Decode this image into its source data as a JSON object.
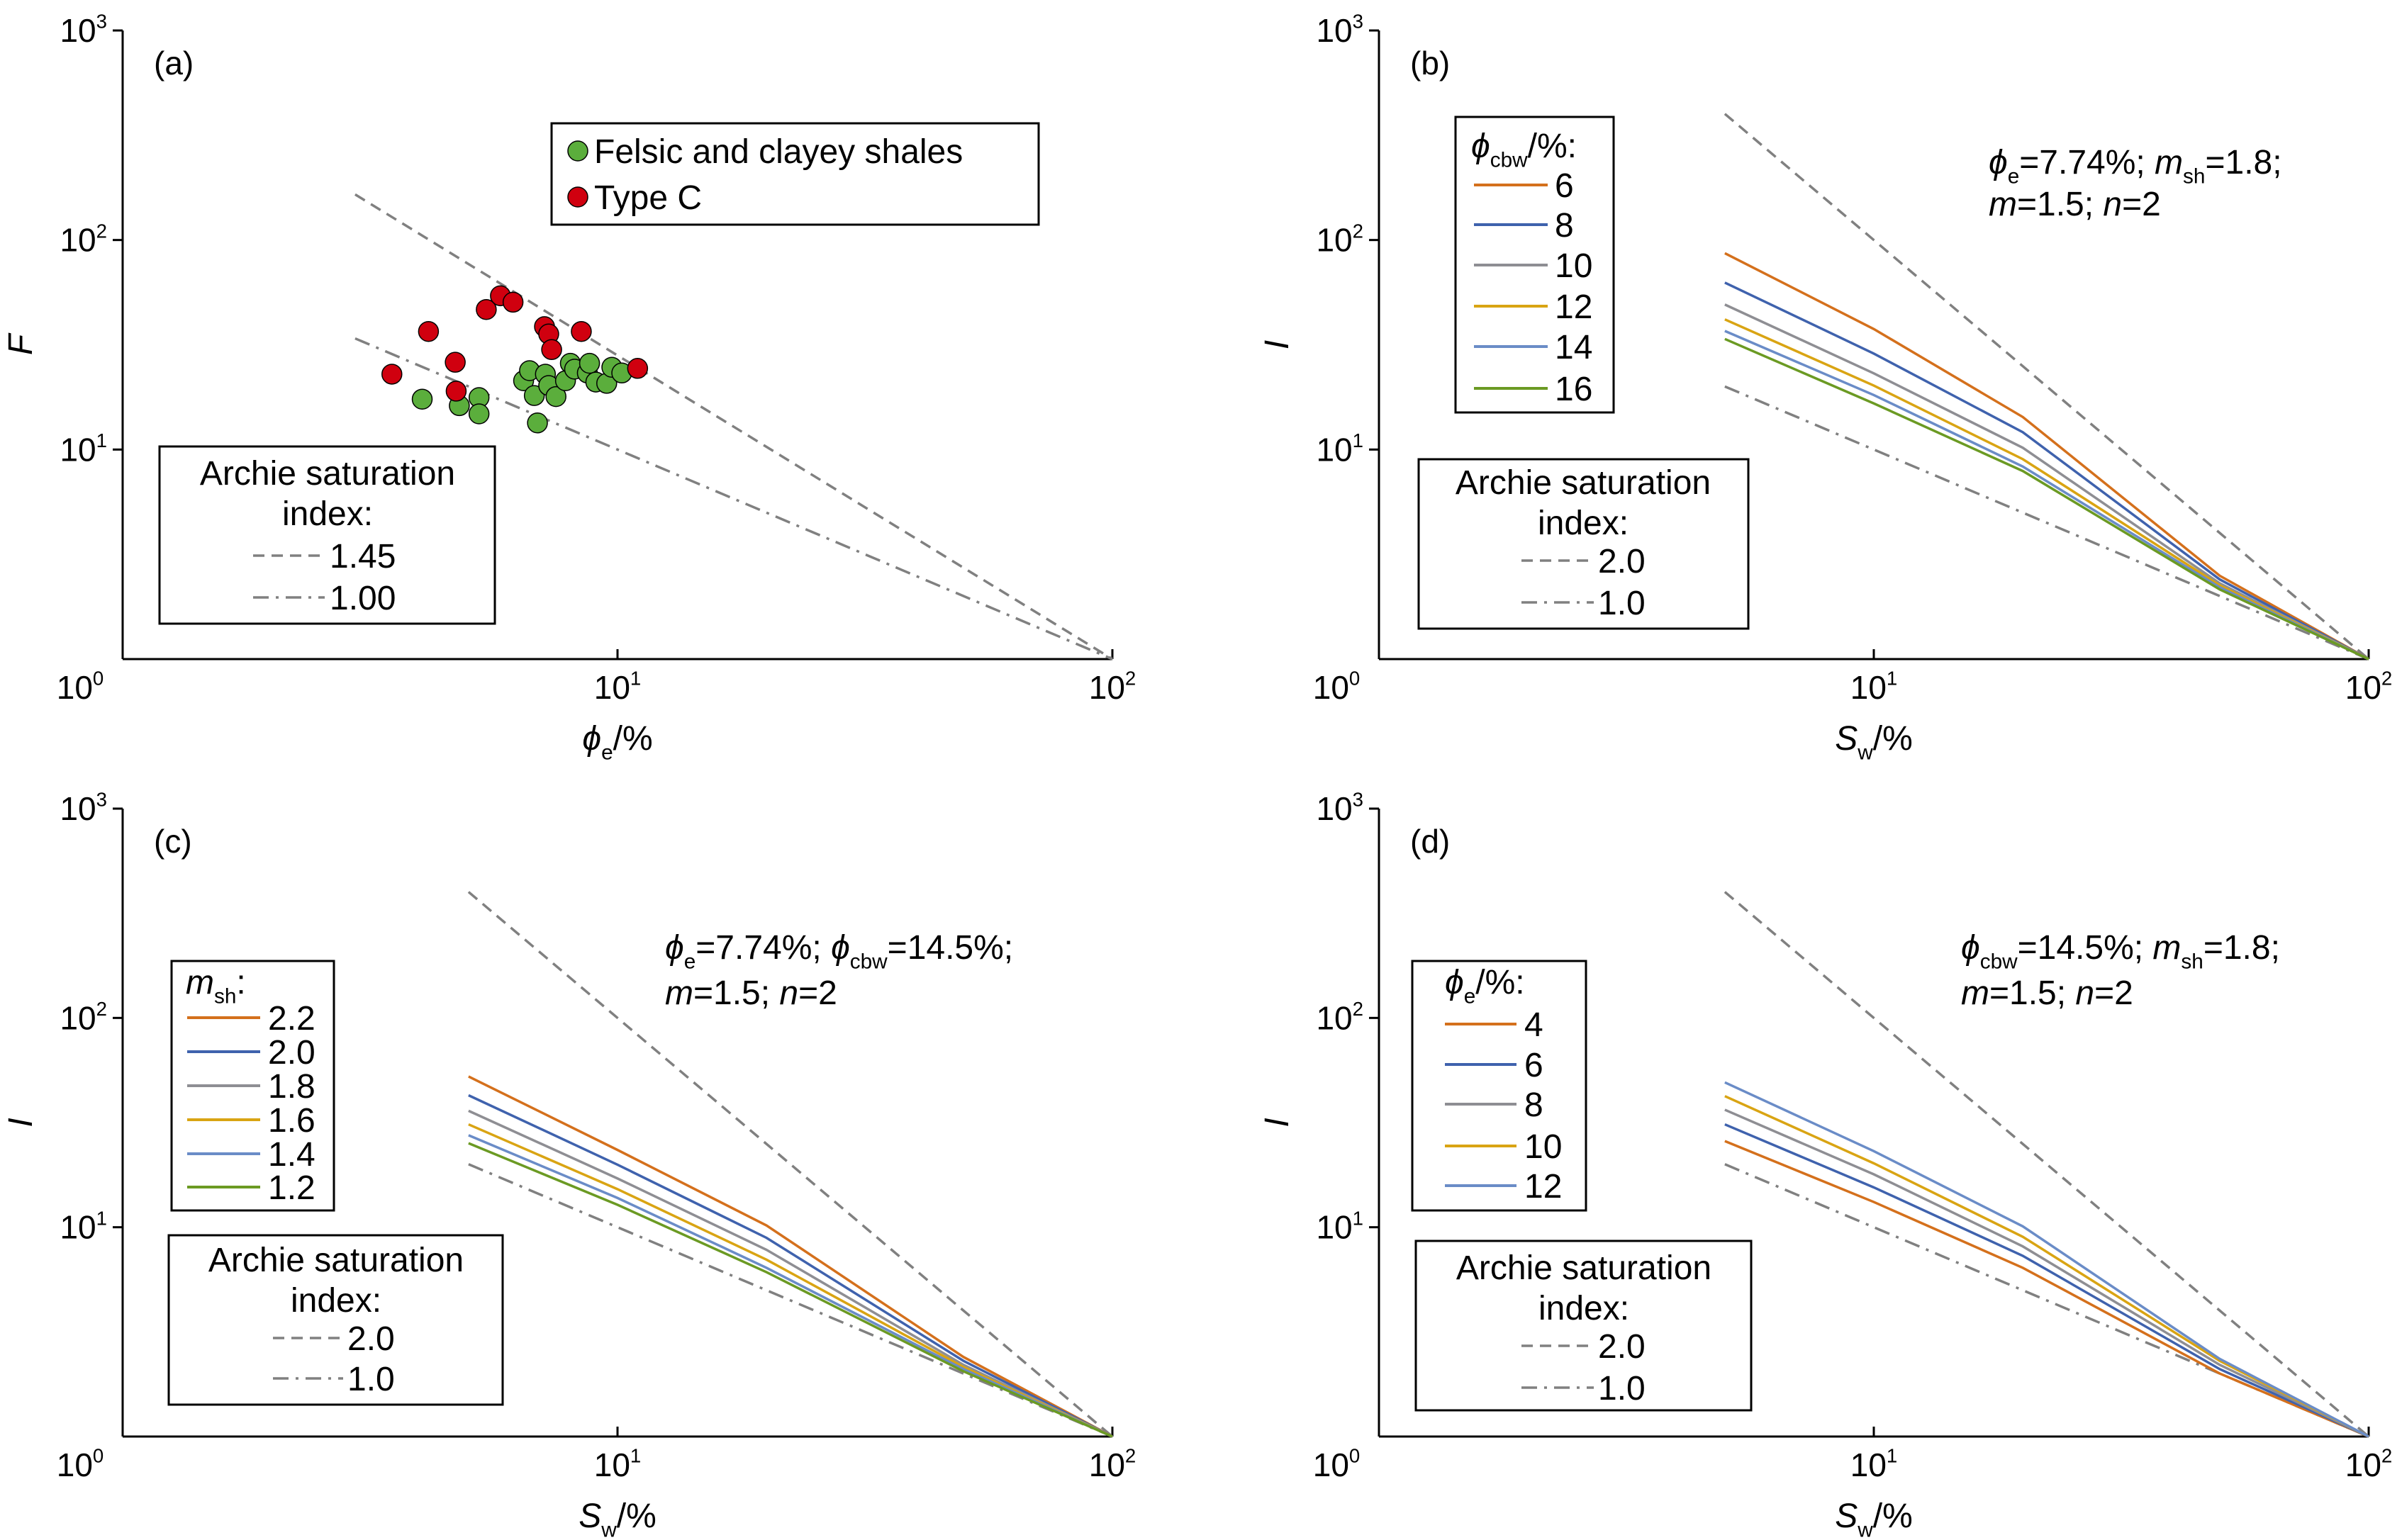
{
  "chart_data": [
    {
      "panel_label": "(a)",
      "type": "scatter",
      "xscale": "log",
      "yscale": "log",
      "xlim": [
        1,
        100
      ],
      "ylim": [
        1,
        1000
      ],
      "x_tick_exponents": [
        0,
        1,
        2
      ],
      "y_tick_exponents": [
        0,
        1,
        2,
        3
      ],
      "xlabel": [
        {
          "t": "ϕ",
          "i": true
        },
        {
          "t": "e",
          "sub": true
        },
        {
          "t": "/%"
        }
      ],
      "ylabel": [
        {
          "t": "F",
          "i": true
        }
      ],
      "series": [
        {
          "name": "Felsic and clayey shales",
          "color": "#5BAE3C",
          "points": [
            [
              4.03,
              17.4
            ],
            [
              4.79,
              16.2
            ],
            [
              5.25,
              17.7
            ],
            [
              5.25,
              14.8
            ],
            [
              6.89,
              13.4
            ],
            [
              6.46,
              21.3
            ],
            [
              6.64,
              23.8
            ],
            [
              6.79,
              18.1
            ],
            [
              7.15,
              22.9
            ],
            [
              7.26,
              20.2
            ],
            [
              7.51,
              17.9
            ],
            [
              7.85,
              21.3
            ],
            [
              8.03,
              25.8
            ],
            [
              8.19,
              24.2
            ],
            [
              8.69,
              23.2
            ],
            [
              8.78,
              25.8
            ],
            [
              9.04,
              21.0
            ],
            [
              9.51,
              20.7
            ],
            [
              9.74,
              24.7
            ],
            [
              10.2,
              23.2
            ]
          ]
        },
        {
          "name": "Type C",
          "color": "#D0000F",
          "points": [
            [
              3.5,
              22.9
            ],
            [
              4.15,
              36.6
            ],
            [
              4.7,
              26.1
            ],
            [
              4.72,
              19.0
            ],
            [
              5.43,
              46.6
            ],
            [
              5.8,
              54.2
            ],
            [
              6.15,
              50.5
            ],
            [
              7.12,
              38.6
            ],
            [
              7.26,
              35.6
            ],
            [
              7.36,
              30.0
            ],
            [
              8.45,
              36.6
            ],
            [
              10.98,
              24.4
            ]
          ]
        }
      ],
      "reference_legend": {
        "title": [
          "Archie saturation",
          "index:"
        ],
        "lines": [
          {
            "label": "1.45",
            "style": "dashed",
            "points": [
              [
                2.95,
                165
              ],
              [
                100,
                1
              ]
            ]
          },
          {
            "label": "1.00",
            "style": "dashdot",
            "points": [
              [
                2.95,
                33.9
              ],
              [
                100,
                1
              ]
            ]
          }
        ]
      }
    },
    {
      "panel_label": "(b)",
      "type": "line",
      "xscale": "log",
      "yscale": "log",
      "xlim": [
        1,
        100
      ],
      "ylim": [
        1,
        1000
      ],
      "x_tick_exponents": [
        0,
        1,
        2
      ],
      "y_tick_exponents": [
        0,
        1,
        2,
        3
      ],
      "xlabel": [
        {
          "t": "S",
          "i": true
        },
        {
          "t": "w",
          "sub": true
        },
        {
          "t": "/%"
        }
      ],
      "ylabel": [
        {
          "t": "I",
          "i": true
        }
      ],
      "annotation": [
        [
          {
            "t": "ϕ",
            "i": true
          },
          {
            "t": "e",
            "sub": true
          },
          {
            "t": "=7.74%; "
          },
          {
            "t": "m",
            "i": true
          },
          {
            "t": "sh",
            "sub": true
          },
          {
            "t": "=1.8;"
          }
        ],
        [
          {
            "t": "m",
            "i": true
          },
          {
            "t": "=1.5; "
          },
          {
            "t": "n",
            "i": true
          },
          {
            "t": "=2"
          }
        ]
      ],
      "legend_title": [
        {
          "t": "ϕ",
          "i": true
        },
        {
          "t": "cbw",
          "sub": true
        },
        {
          "t": "/%:"
        }
      ],
      "x": [
        5,
        10,
        20,
        50,
        100
      ],
      "series": [
        {
          "name": "6",
          "color": "#D4701C",
          "values": [
            86.5,
            37.6,
            14.3,
            2.5,
            1
          ]
        },
        {
          "name": "8",
          "color": "#3F62AD",
          "values": [
            62.6,
            28.7,
            12.1,
            2.4,
            1
          ]
        },
        {
          "name": "10",
          "color": "#8E8E93",
          "values": [
            49.2,
            23.1,
            10.2,
            2.3,
            1
          ]
        },
        {
          "name": "12",
          "color": "#D9A413",
          "values": [
            41.8,
            20.2,
            9.0,
            2.25,
            1
          ]
        },
        {
          "name": "14",
          "color": "#6A8CC7",
          "values": [
            36.8,
            18.2,
            8.3,
            2.2,
            1
          ]
        },
        {
          "name": "16",
          "color": "#6B9A23",
          "values": [
            33.7,
            16.6,
            7.9,
            2.15,
            1
          ]
        }
      ],
      "reference_legend": {
        "title": [
          "Archie saturation",
          "index:"
        ],
        "lines": [
          {
            "label": "2.0",
            "style": "dashed",
            "points": [
              [
                5,
                400
              ],
              [
                100,
                1
              ]
            ]
          },
          {
            "label": "1.0",
            "style": "dashdot",
            "points": [
              [
                5,
                20
              ],
              [
                100,
                1
              ]
            ]
          }
        ]
      }
    },
    {
      "panel_label": "(c)",
      "type": "line",
      "xscale": "log",
      "yscale": "log",
      "xlim": [
        1,
        100
      ],
      "ylim": [
        1,
        1000
      ],
      "x_tick_exponents": [
        0,
        1,
        2
      ],
      "y_tick_exponents": [
        0,
        1,
        2,
        3
      ],
      "xlabel": [
        {
          "t": "S",
          "i": true
        },
        {
          "t": "w",
          "sub": true
        },
        {
          "t": "/%"
        }
      ],
      "ylabel": [
        {
          "t": "I",
          "i": true
        }
      ],
      "annotation": [
        [
          {
            "t": "ϕ",
            "i": true
          },
          {
            "t": "e",
            "sub": true
          },
          {
            "t": "=7.74%; "
          },
          {
            "t": "ϕ",
            "i": true
          },
          {
            "t": "cbw",
            "sub": true
          },
          {
            "t": "=14.5%;"
          }
        ],
        [
          {
            "t": "m",
            "i": true
          },
          {
            "t": "=1.5; "
          },
          {
            "t": "n",
            "i": true
          },
          {
            "t": "=2"
          }
        ]
      ],
      "legend_title": [
        {
          "t": "m",
          "i": true
        },
        {
          "t": "sh",
          "sub": true
        },
        {
          "t": ":"
        }
      ],
      "x": [
        5,
        10,
        20,
        50,
        100
      ],
      "series": [
        {
          "name": "2.2",
          "color": "#D4701C",
          "values": [
            52.5,
            23.4,
            10.2,
            2.4,
            1
          ]
        },
        {
          "name": "2.0",
          "color": "#3F62AD",
          "values": [
            42.7,
            19.9,
            8.9,
            2.3,
            1
          ]
        },
        {
          "name": "1.8",
          "color": "#8E8E93",
          "values": [
            36.0,
            17.1,
            7.8,
            2.2,
            1
          ]
        },
        {
          "name": "1.6",
          "color": "#D9A413",
          "values": [
            31.0,
            15.2,
            7.0,
            2.15,
            1
          ]
        },
        {
          "name": "1.4",
          "color": "#6A8CC7",
          "values": [
            27.5,
            13.8,
            6.4,
            2.1,
            1
          ]
        },
        {
          "name": "1.2",
          "color": "#6B9A23",
          "values": [
            25.2,
            12.8,
            6.1,
            2.05,
            1
          ]
        }
      ],
      "reference_legend": {
        "title": [
          "Archie saturation",
          "index:"
        ],
        "lines": [
          {
            "label": "2.0",
            "style": "dashed",
            "points": [
              [
                5,
                400
              ],
              [
                100,
                1
              ]
            ]
          },
          {
            "label": "1.0",
            "style": "dashdot",
            "points": [
              [
                5,
                20
              ],
              [
                100,
                1
              ]
            ]
          }
        ]
      }
    },
    {
      "panel_label": "(d)",
      "type": "line",
      "xscale": "log",
      "yscale": "log",
      "xlim": [
        1,
        100
      ],
      "ylim": [
        1,
        1000
      ],
      "x_tick_exponents": [
        0,
        1,
        2
      ],
      "y_tick_exponents": [
        0,
        1,
        2,
        3
      ],
      "xlabel": [
        {
          "t": "S",
          "i": true
        },
        {
          "t": "w",
          "sub": true
        },
        {
          "t": "/%"
        }
      ],
      "ylabel": [
        {
          "t": "I",
          "i": true
        }
      ],
      "annotation": [
        [
          {
            "t": "ϕ",
            "i": true
          },
          {
            "t": "cbw",
            "sub": true
          },
          {
            "t": "=14.5%; "
          },
          {
            "t": "m",
            "i": true
          },
          {
            "t": "sh",
            "sub": true
          },
          {
            "t": "=1.8;"
          }
        ],
        [
          {
            "t": "m",
            "i": true
          },
          {
            "t": "=1.5; "
          },
          {
            "t": "n",
            "i": true
          },
          {
            "t": "=2"
          }
        ]
      ],
      "legend_title": [
        {
          "t": "ϕ",
          "i": true
        },
        {
          "t": "e",
          "sub": true
        },
        {
          "t": "/%:"
        }
      ],
      "x": [
        5,
        10,
        20,
        50,
        100
      ],
      "series": [
        {
          "name": "4",
          "color": "#D4701C",
          "values": [
            25.8,
            13.2,
            6.4,
            2.0,
            1
          ]
        },
        {
          "name": "6",
          "color": "#3F62AD",
          "values": [
            31.0,
            15.5,
            7.3,
            2.1,
            1
          ]
        },
        {
          "name": "8",
          "color": "#8E8E93",
          "values": [
            36.4,
            17.9,
            8.1,
            2.2,
            1
          ]
        },
        {
          "name": "10",
          "color": "#D9A413",
          "values": [
            42.3,
            20.2,
            9.0,
            2.3,
            1
          ]
        },
        {
          "name": "12",
          "color": "#6A8CC7",
          "values": [
            49.2,
            23.1,
            10.1,
            2.35,
            1
          ]
        }
      ],
      "reference_legend": {
        "title": [
          "Archie saturation",
          "index:"
        ],
        "lines": [
          {
            "label": "2.0",
            "style": "dashed",
            "points": [
              [
                5,
                400
              ],
              [
                100,
                1
              ]
            ]
          },
          {
            "label": "1.0",
            "style": "dashdot",
            "points": [
              [
                5,
                20
              ],
              [
                100,
                1
              ]
            ]
          }
        ]
      }
    }
  ],
  "reference_line_color": "#808080"
}
